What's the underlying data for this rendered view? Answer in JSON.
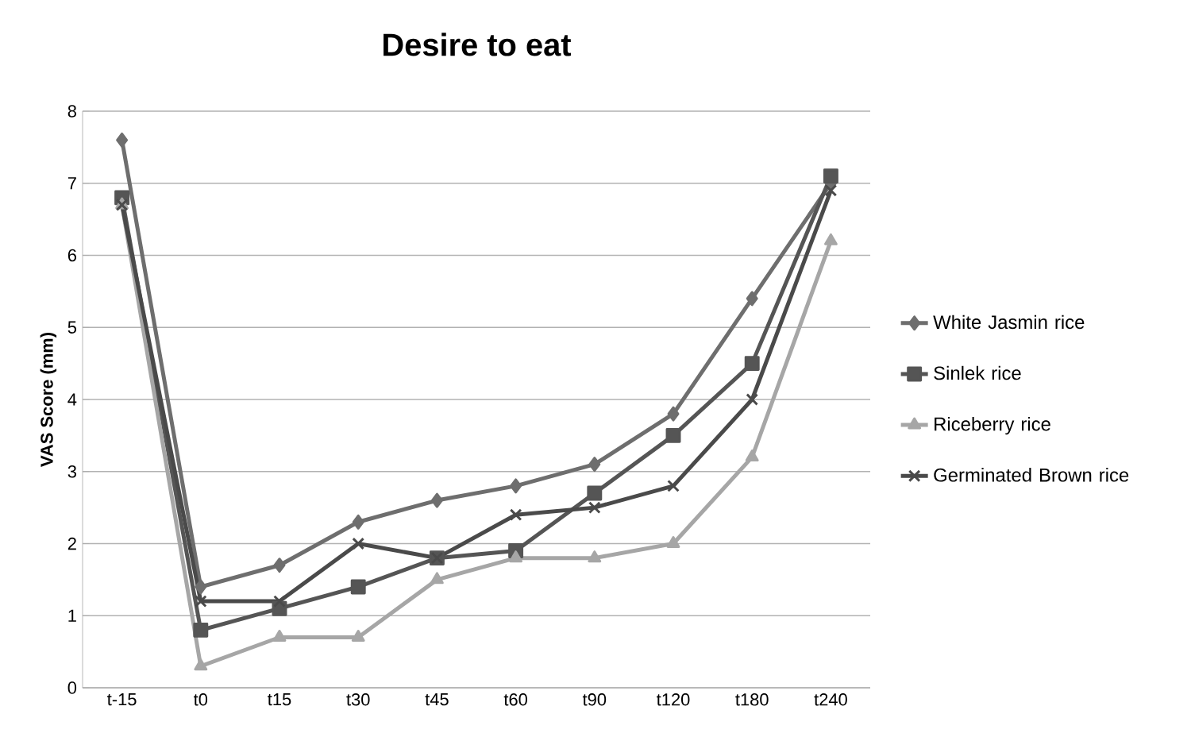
{
  "chart_data": {
    "type": "line",
    "title": "Desire to eat",
    "ylabel": "VAS Score (mm)",
    "categories": [
      "t-15",
      "t0",
      "t15",
      "t30",
      "t45",
      "t60",
      "t90",
      "t120",
      "t180",
      "t240"
    ],
    "ylim": [
      0,
      8
    ],
    "yticks": [
      0,
      1,
      2,
      3,
      4,
      5,
      6,
      7,
      8
    ],
    "grid": "y",
    "legend": "right",
    "series": [
      {
        "name": "White Jasmin rice",
        "color": "#6e6e6e",
        "marker": "diamond",
        "values": [
          7.6,
          1.4,
          1.7,
          2.3,
          2.6,
          2.8,
          3.1,
          3.8,
          5.4,
          7.0
        ]
      },
      {
        "name": "Sinlek rice",
        "color": "#555555",
        "marker": "square",
        "values": [
          6.8,
          0.8,
          1.1,
          1.4,
          1.8,
          1.9,
          2.7,
          3.5,
          4.5,
          7.1
        ]
      },
      {
        "name": "Riceberry rice",
        "color": "#a6a6a6",
        "marker": "triangle",
        "values": [
          6.7,
          0.3,
          0.7,
          0.7,
          1.5,
          1.8,
          1.8,
          2.0,
          3.2,
          6.2
        ]
      },
      {
        "name": "Germinated Brown rice",
        "color": "#4a4a4a",
        "marker": "cross",
        "values": [
          6.7,
          1.2,
          1.2,
          2.0,
          1.8,
          2.4,
          2.5,
          2.8,
          4.0,
          6.9
        ]
      }
    ]
  }
}
